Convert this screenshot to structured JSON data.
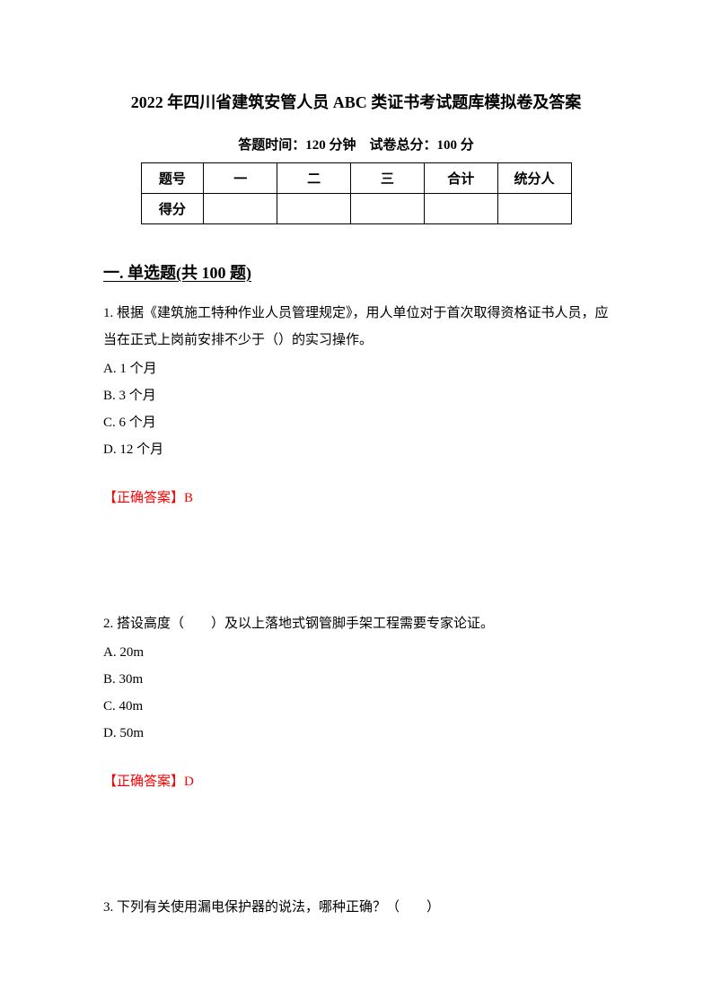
{
  "title": "2022 年四川省建筑安管人员 ABC 类证书考试题库模拟卷及答案",
  "subtitle": "答题时间：120 分钟　试卷总分：100 分",
  "table": {
    "row1": {
      "label": "题号",
      "c1": "一",
      "c2": "二",
      "c3": "三",
      "c4": "合计",
      "c5": "统分人"
    },
    "row2": {
      "label": "得分",
      "c1": "",
      "c2": "",
      "c3": "",
      "c4": "",
      "c5": ""
    }
  },
  "section1": {
    "header": "一. 单选题(共 100 题)",
    "q1": {
      "text": "1. 根据《建筑施工特种作业人员管理规定》，用人单位对于首次取得资格证书人员，应当在正式上岗前安排不少于（）的实习操作。",
      "optA": "A. 1 个月",
      "optB": "B. 3 个月",
      "optC": "C. 6 个月",
      "optD": "D. 12 个月",
      "answer": "【正确答案】B"
    },
    "q2": {
      "text": "2. 搭设高度（　　）及以上落地式钢管脚手架工程需要专家论证。",
      "optA": "A. 20m",
      "optB": "B. 30m",
      "optC": "C. 40m",
      "optD": "D. 50m",
      "answer": "【正确答案】D"
    },
    "q3": {
      "text": "3. 下列有关使用漏电保护器的说法，哪种正确？（　　）"
    }
  }
}
